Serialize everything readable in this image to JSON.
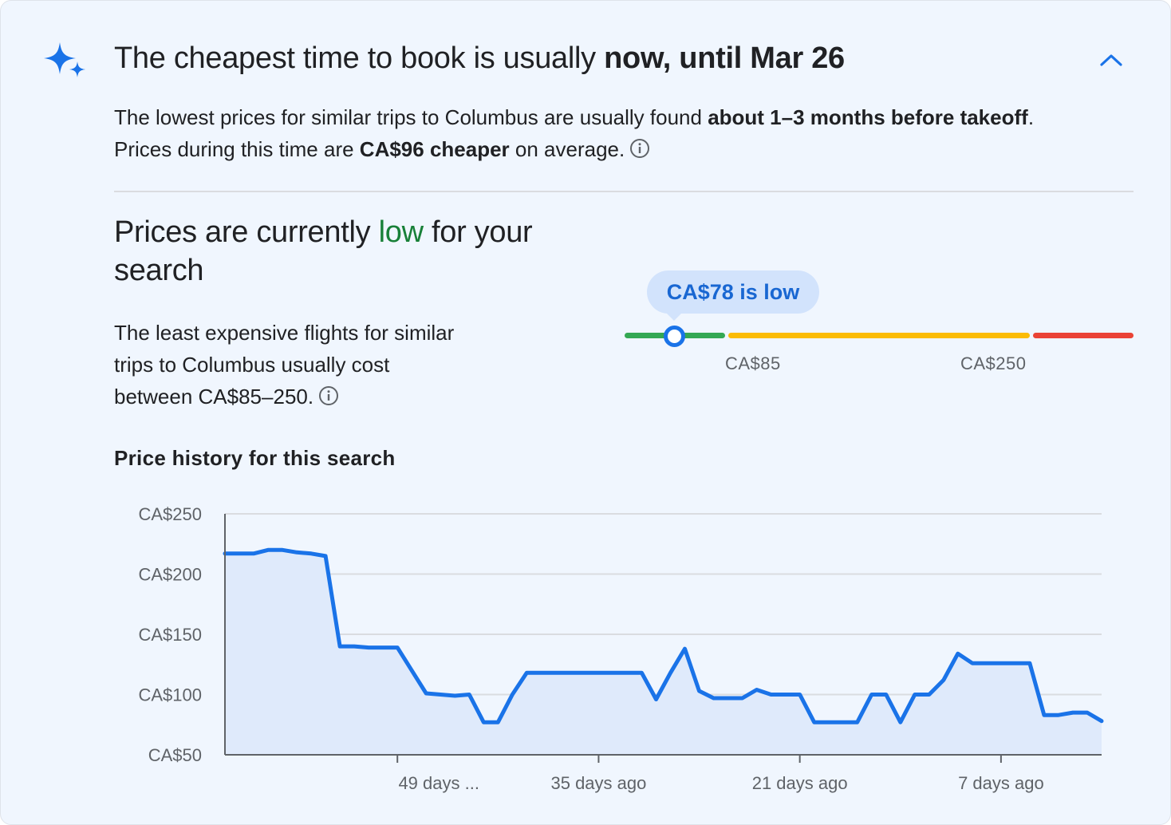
{
  "header": {
    "title_prefix": "The cheapest time to book is usually ",
    "title_bold": "now, until Mar 26",
    "collapse_icon": "chevron-up-icon",
    "sparkle_icon": "sparkle-icon"
  },
  "summary": {
    "part1": "The lowest prices for similar trips to Columbus are usually found ",
    "bold1": "about 1–3 months before takeoff",
    "part2": ". Prices during this time are ",
    "bold2": "CA$96 cheaper",
    "part3": " on average."
  },
  "status": {
    "title_pre": "Prices are currently ",
    "level": "low",
    "title_post": " for your search",
    "description": "The least expensive flights for similar trips to Columbus usually cost between CA$85–250."
  },
  "price_gauge": {
    "current_label": "CA$78 is low",
    "current_value": 78,
    "low_threshold_label": "CA$85",
    "high_threshold_label": "CA$250",
    "colors": {
      "low": "#34a853",
      "typical": "#fbbc04",
      "high": "#ea4335",
      "marker": "#1a73e8"
    }
  },
  "chart_title": "Price history for this search",
  "chart_data": {
    "type": "area",
    "title": "Price history for this search",
    "ylim": [
      50,
      250
    ],
    "y_ticks": [
      50,
      100,
      150,
      200,
      250
    ],
    "y_tick_labels": [
      "CA$50",
      "CA$100",
      "CA$150",
      "CA$200",
      "CA$250"
    ],
    "xlim": [
      61,
      0
    ],
    "x_ticks": [
      49,
      35,
      21,
      7
    ],
    "x_tick_labels": [
      "49 days ...",
      "35 days ago",
      "21 days ago",
      "7 days ago"
    ],
    "x_unit": "days ago",
    "grid": true,
    "color": "#1a73e8",
    "fill_color": "#dfeafb",
    "series": [
      {
        "x": [
          61,
          59,
          58,
          57,
          56,
          55,
          54,
          53,
          52,
          51,
          50,
          49,
          48,
          47,
          46,
          45,
          44,
          43,
          42,
          41,
          40,
          39,
          38,
          37,
          36,
          35,
          34,
          33,
          32,
          31,
          30,
          29,
          28,
          27,
          26,
          25,
          24,
          23,
          22,
          21,
          20,
          19,
          18,
          17,
          16,
          15,
          14,
          13,
          12,
          11,
          10,
          9,
          8,
          7,
          6,
          5,
          4,
          3,
          2,
          1,
          0
        ],
        "y": [
          217,
          217,
          220,
          220,
          218,
          217,
          215,
          140,
          140,
          139,
          139,
          139,
          120,
          101,
          100,
          99,
          100,
          77,
          77,
          100,
          118,
          118,
          118,
          118,
          118,
          118,
          118,
          118,
          118,
          96,
          118,
          138,
          103,
          97,
          97,
          97,
          104,
          100,
          100,
          100,
          77,
          77,
          77,
          77,
          100,
          100,
          77,
          100,
          100,
          112,
          134,
          126,
          126,
          126,
          126,
          126,
          83,
          83,
          85,
          85,
          78
        ]
      }
    ]
  }
}
